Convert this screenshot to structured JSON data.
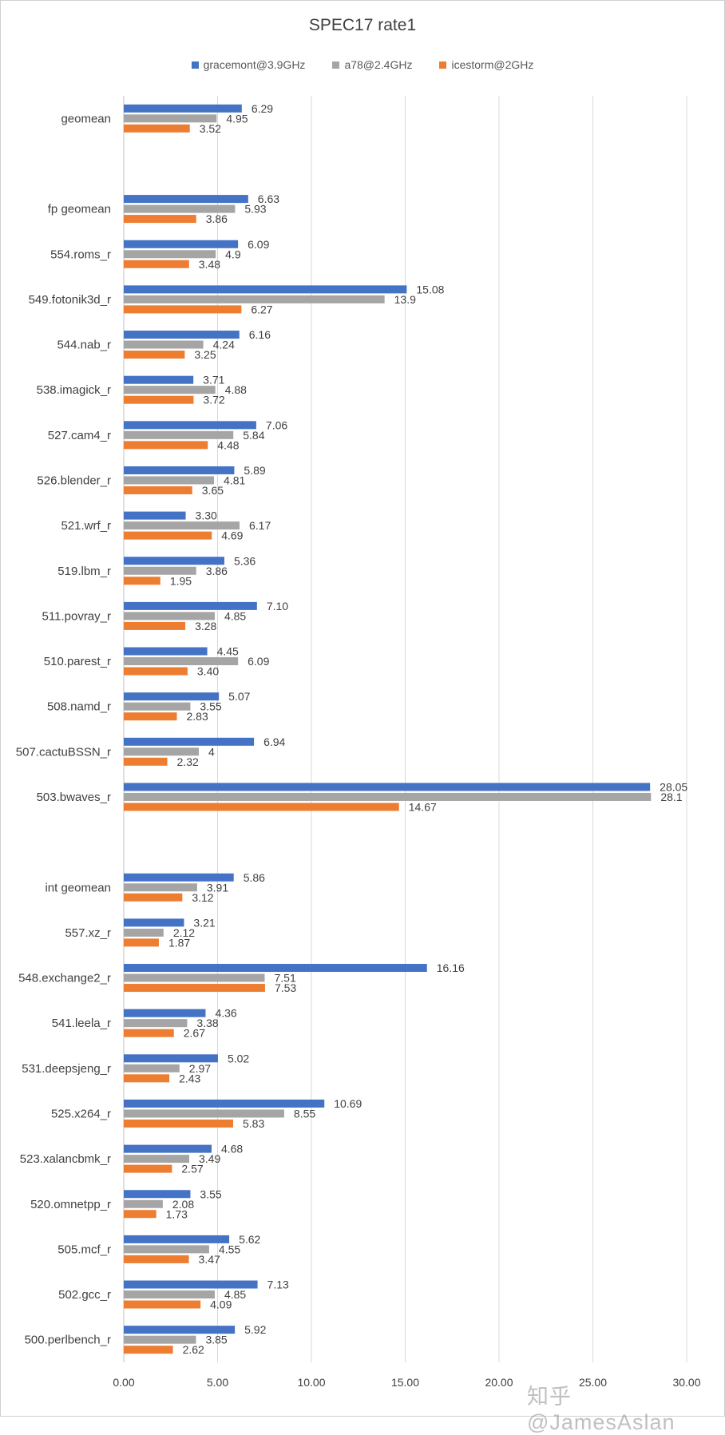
{
  "chart_data": {
    "type": "bar",
    "orientation": "horizontal",
    "title": "SPEC17 rate1",
    "xlim": [
      0,
      30
    ],
    "xticks": [
      "0.00",
      "5.00",
      "10.00",
      "15.00",
      "20.00",
      "25.00",
      "30.00"
    ],
    "grid": true,
    "legend_position": "top",
    "series": [
      {
        "name": "gracemont@3.9GHz",
        "color": "#4472c4"
      },
      {
        "name": "a78@2.4GHz",
        "color": "#a5a5a5"
      },
      {
        "name": "icestorm@2GHz",
        "color": "#ed7d31"
      }
    ],
    "groups": [
      {
        "label": "geomean",
        "values": [
          6.29,
          4.95,
          3.52
        ],
        "labels": [
          "6.29",
          "4.95",
          "3.52"
        ]
      },
      {
        "label": "",
        "values": null,
        "labels": null
      },
      {
        "label": "fp geomean",
        "values": [
          6.63,
          5.93,
          3.86
        ],
        "labels": [
          "6.63",
          "5.93",
          "3.86"
        ]
      },
      {
        "label": "554.roms_r",
        "values": [
          6.09,
          4.9,
          3.48
        ],
        "labels": [
          "6.09",
          "4.9",
          "3.48"
        ]
      },
      {
        "label": "549.fotonik3d_r",
        "values": [
          15.08,
          13.9,
          6.27
        ],
        "labels": [
          "15.08",
          "13.9",
          "6.27"
        ]
      },
      {
        "label": "544.nab_r",
        "values": [
          6.16,
          4.24,
          3.25
        ],
        "labels": [
          "6.16",
          "4.24",
          "3.25"
        ]
      },
      {
        "label": "538.imagick_r",
        "values": [
          3.71,
          4.88,
          3.72
        ],
        "labels": [
          "3.71",
          "4.88",
          "3.72"
        ]
      },
      {
        "label": "527.cam4_r",
        "values": [
          7.06,
          5.84,
          4.48
        ],
        "labels": [
          "7.06",
          "5.84",
          "4.48"
        ]
      },
      {
        "label": "526.blender_r",
        "values": [
          5.89,
          4.81,
          3.65
        ],
        "labels": [
          "5.89",
          "4.81",
          "3.65"
        ]
      },
      {
        "label": "521.wrf_r",
        "values": [
          3.3,
          6.17,
          4.69
        ],
        "labels": [
          "3.30",
          "6.17",
          "4.69"
        ]
      },
      {
        "label": "519.lbm_r",
        "values": [
          5.36,
          3.86,
          1.95
        ],
        "labels": [
          "5.36",
          "3.86",
          "1.95"
        ]
      },
      {
        "label": "511.povray_r",
        "values": [
          7.1,
          4.85,
          3.28
        ],
        "labels": [
          "7.10",
          "4.85",
          "3.28"
        ]
      },
      {
        "label": "510.parest_r",
        "values": [
          4.45,
          6.09,
          3.4
        ],
        "labels": [
          "4.45",
          "6.09",
          "3.40"
        ]
      },
      {
        "label": "508.namd_r",
        "values": [
          5.07,
          3.55,
          2.83
        ],
        "labels": [
          "5.07",
          "3.55",
          "2.83"
        ]
      },
      {
        "label": "507.cactuBSSN_r",
        "values": [
          6.94,
          4,
          2.32
        ],
        "labels": [
          "6.94",
          "4",
          "2.32"
        ]
      },
      {
        "label": "503.bwaves_r",
        "values": [
          28.05,
          28.1,
          14.67
        ],
        "labels": [
          "28.05",
          "28.1",
          "14.67"
        ]
      },
      {
        "label": "",
        "values": null,
        "labels": null
      },
      {
        "label": "int geomean",
        "values": [
          5.86,
          3.91,
          3.12
        ],
        "labels": [
          "5.86",
          "3.91",
          "3.12"
        ]
      },
      {
        "label": "557.xz_r",
        "values": [
          3.21,
          2.12,
          1.87
        ],
        "labels": [
          "3.21",
          "2.12",
          "1.87"
        ]
      },
      {
        "label": "548.exchange2_r",
        "values": [
          16.16,
          7.51,
          7.53
        ],
        "labels": [
          "16.16",
          "7.51",
          "7.53"
        ]
      },
      {
        "label": "541.leela_r",
        "values": [
          4.36,
          3.38,
          2.67
        ],
        "labels": [
          "4.36",
          "3.38",
          "2.67"
        ]
      },
      {
        "label": "531.deepsjeng_r",
        "values": [
          5.02,
          2.97,
          2.43
        ],
        "labels": [
          "5.02",
          "2.97",
          "2.43"
        ]
      },
      {
        "label": "525.x264_r",
        "values": [
          10.69,
          8.55,
          5.83
        ],
        "labels": [
          "10.69",
          "8.55",
          "5.83"
        ]
      },
      {
        "label": "523.xalancbmk_r",
        "values": [
          4.68,
          3.49,
          2.57
        ],
        "labels": [
          "4.68",
          "3.49",
          "2.57"
        ]
      },
      {
        "label": "520.omnetpp_r",
        "values": [
          3.55,
          2.08,
          1.73
        ],
        "labels": [
          "3.55",
          "2.08",
          "1.73"
        ]
      },
      {
        "label": "505.mcf_r",
        "values": [
          5.62,
          4.55,
          3.47
        ],
        "labels": [
          "5.62",
          "4.55",
          "3.47"
        ]
      },
      {
        "label": "502.gcc_r",
        "values": [
          7.13,
          4.85,
          4.09
        ],
        "labels": [
          "7.13",
          "4.85",
          "4.09"
        ]
      },
      {
        "label": "500.perlbench_r",
        "values": [
          5.92,
          3.85,
          2.62
        ],
        "labels": [
          "5.92",
          "3.85",
          "2.62"
        ]
      }
    ]
  },
  "watermark": "知乎 @JamesAslan"
}
